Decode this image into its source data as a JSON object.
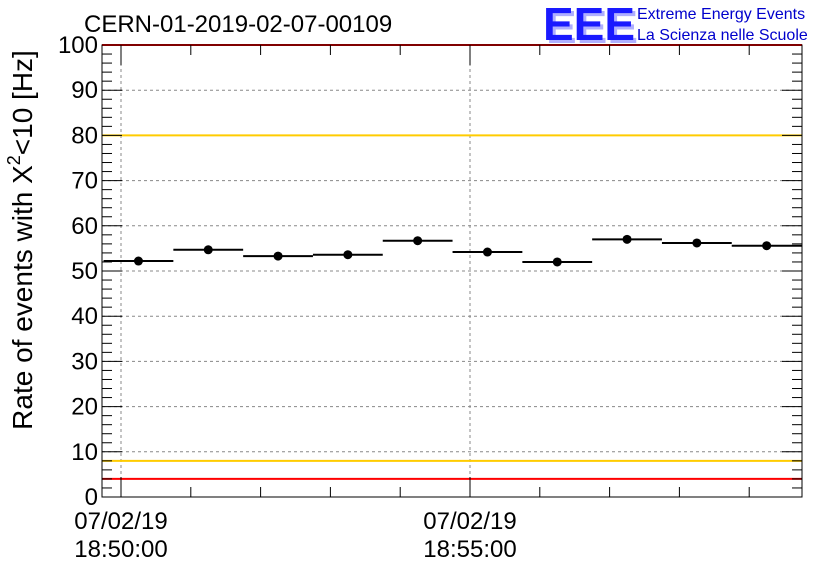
{
  "logo": {
    "mark": "EEE",
    "line1": "Extreme Energy Events",
    "line2": "La Scienza nelle Scuole"
  },
  "chart_data": {
    "type": "scatter",
    "title": "CERN-01-2019-02-07-00109",
    "ylabel_main": "Rate of events with X",
    "ylabel_sup": "2",
    "ylabel_tail": "<10 [Hz]",
    "xlabel": "",
    "ylim": [
      0,
      100
    ],
    "y_ticks": [
      0,
      10,
      20,
      30,
      40,
      50,
      60,
      70,
      80,
      90,
      100
    ],
    "x_tick_labels": [
      {
        "date": "07/02/19",
        "time": "18:50:00"
      },
      {
        "date": "07/02/19",
        "time": "18:55:00"
      }
    ],
    "grid": true,
    "series": [
      {
        "x_start": [
          "18:49:45",
          "18:50:45",
          "18:51:45",
          "18:52:45",
          "18:53:45",
          "18:54:45",
          "18:55:45",
          "18:56:45",
          "18:57:45",
          "18:58:45"
        ],
        "x_end": [
          "18:50:45",
          "18:51:45",
          "18:52:45",
          "18:53:45",
          "18:54:45",
          "18:55:45",
          "18:56:45",
          "18:57:45",
          "18:58:45",
          "18:59:45"
        ],
        "values": [
          52.2,
          54.7,
          53.3,
          53.6,
          56.7,
          54.2,
          52.0,
          57.0,
          56.2,
          55.6
        ]
      }
    ],
    "reference_lines": [
      {
        "y": 100,
        "color": "#ff0000"
      },
      {
        "y": 80,
        "color": "#ffcc00"
      },
      {
        "y": 8,
        "color": "#ffcc00"
      },
      {
        "y": 4,
        "color": "#ff0000"
      }
    ]
  }
}
